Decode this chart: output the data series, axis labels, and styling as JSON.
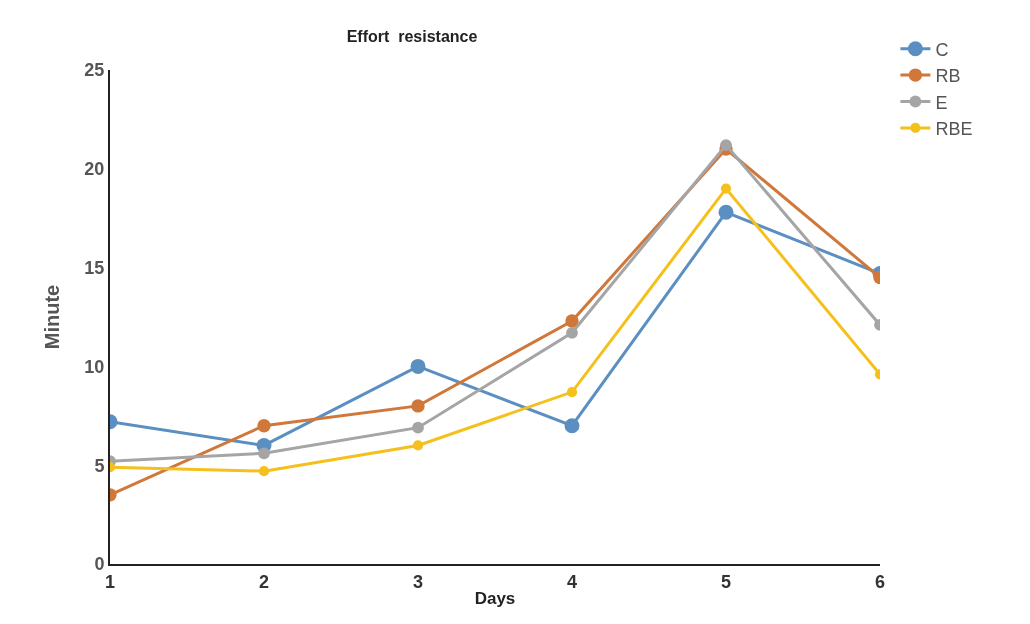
{
  "chart_data": {
    "type": "line",
    "title": "Effort  resistance",
    "xlabel": "Days",
    "ylabel": "Minute",
    "x": [
      1,
      2,
      3,
      4,
      5,
      6
    ],
    "xlim": [
      1,
      6
    ],
    "xticks": [
      1,
      2,
      3,
      4,
      5,
      6
    ],
    "ylim": [
      0,
      25
    ],
    "yticks": [
      0,
      5,
      10,
      15,
      20,
      25
    ],
    "grid": false,
    "legend": "top right",
    "marker": "circle",
    "line_style": "solid",
    "series": [
      {
        "name": "C",
        "color": "#5b8fc2",
        "values": [
          7.2,
          6.0,
          10.0,
          7.0,
          17.8,
          14.7
        ]
      },
      {
        "name": "RB",
        "color": "#d0773a",
        "values": [
          3.5,
          7.0,
          8.0,
          12.3,
          21.0,
          14.5
        ]
      },
      {
        "name": "E",
        "color": "#a5a5a5",
        "values": [
          5.2,
          5.6,
          6.9,
          11.7,
          21.2,
          12.1
        ]
      },
      {
        "name": "RBE",
        "color": "#f5c01c",
        "values": [
          4.9,
          4.7,
          6.0,
          8.7,
          19.0,
          9.6
        ]
      }
    ]
  }
}
